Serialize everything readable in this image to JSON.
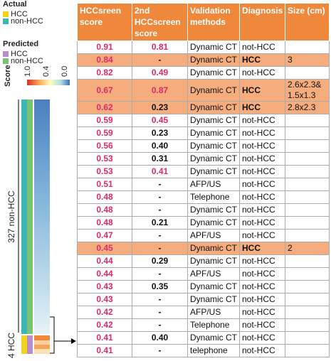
{
  "legend": {
    "actual_title": "Actual",
    "actual": [
      {
        "label": "HCC",
        "color": "#f2d21b"
      },
      {
        "label": "non-HCC",
        "color": "#3bb7b5"
      }
    ],
    "predicted_title": "Predicted",
    "predicted": [
      {
        "label": "HCC",
        "color": "#b98ccd"
      },
      {
        "label": "non-HCC",
        "color": "#79c276"
      }
    ],
    "score_title": "Score",
    "score_ticks": [
      "1.0",
      "0.4",
      "0.0"
    ]
  },
  "groups": [
    "327 non-HCC",
    "4 HCC"
  ],
  "table": {
    "header": [
      "HCCsreen score",
      "2nd HCCscreen score",
      "Validation methods",
      "Diagnosis",
      "Size (cm)"
    ],
    "rows": [
      [
        "0.91",
        "0.81",
        "Dynamic CT",
        "not-HCC"
      ],
      [
        "0.84",
        "-",
        "Dynamic CT",
        "HCC",
        "3"
      ],
      [
        "0.82",
        "0.49",
        "Dynamic CT",
        "not-HCC"
      ],
      [
        "0.67",
        "0.87",
        "Dynamic CT",
        "HCC",
        "2.6x2.3& 1.5x1.3"
      ],
      [
        "0.62",
        "0.23",
        "Dynamic CT",
        "HCC",
        "2.8x2.3"
      ],
      [
        "0.59",
        "0.45",
        "Dynamic CT",
        "not-HCC"
      ],
      [
        "0.59",
        "0.23",
        "Dynamic CT",
        "not-HCC"
      ],
      [
        "0.56",
        "0.40",
        "Dynamic CT",
        "not-HCC"
      ],
      [
        "0.53",
        "0.31",
        "Dynamic CT",
        "not-HCC"
      ],
      [
        "0.53",
        "0.41",
        "Dynamic CT",
        "not-HCC"
      ],
      [
        "0.51",
        "-",
        "AFP/US",
        "not-HCC"
      ],
      [
        "0.48",
        "-",
        "Telephone",
        "not-HCC"
      ],
      [
        "0.48",
        "-",
        "Dynamic CT",
        "not-HCC"
      ],
      [
        "0.48",
        "0.21",
        "Dynamic CT",
        "not-HCC"
      ],
      [
        "0.47",
        "-",
        "APF/US",
        "not-HCC"
      ],
      [
        "0.45",
        "-",
        "Dynamic CT",
        "HCC",
        "2"
      ],
      [
        "0.44",
        "0.29",
        "Dynamic CT",
        "not-HCC"
      ],
      [
        "0.44",
        "-",
        "APF/US",
        "not-HCC"
      ],
      [
        "0.43",
        "0.35",
        "Dynamic CT",
        "not-HCC"
      ],
      [
        "0.43",
        "-",
        "Dynamic CT",
        "not-HCC"
      ],
      [
        "0.42",
        "-",
        "AFP/US",
        "not-HCC"
      ],
      [
        "0.42",
        "-",
        "Telephone",
        "not-HCC"
      ],
      [
        "0.41",
        "0.40",
        "Dynamic CT",
        "not-HCC"
      ],
      [
        "0.41",
        "-",
        "telephone",
        "not-HCC"
      ]
    ]
  }
}
